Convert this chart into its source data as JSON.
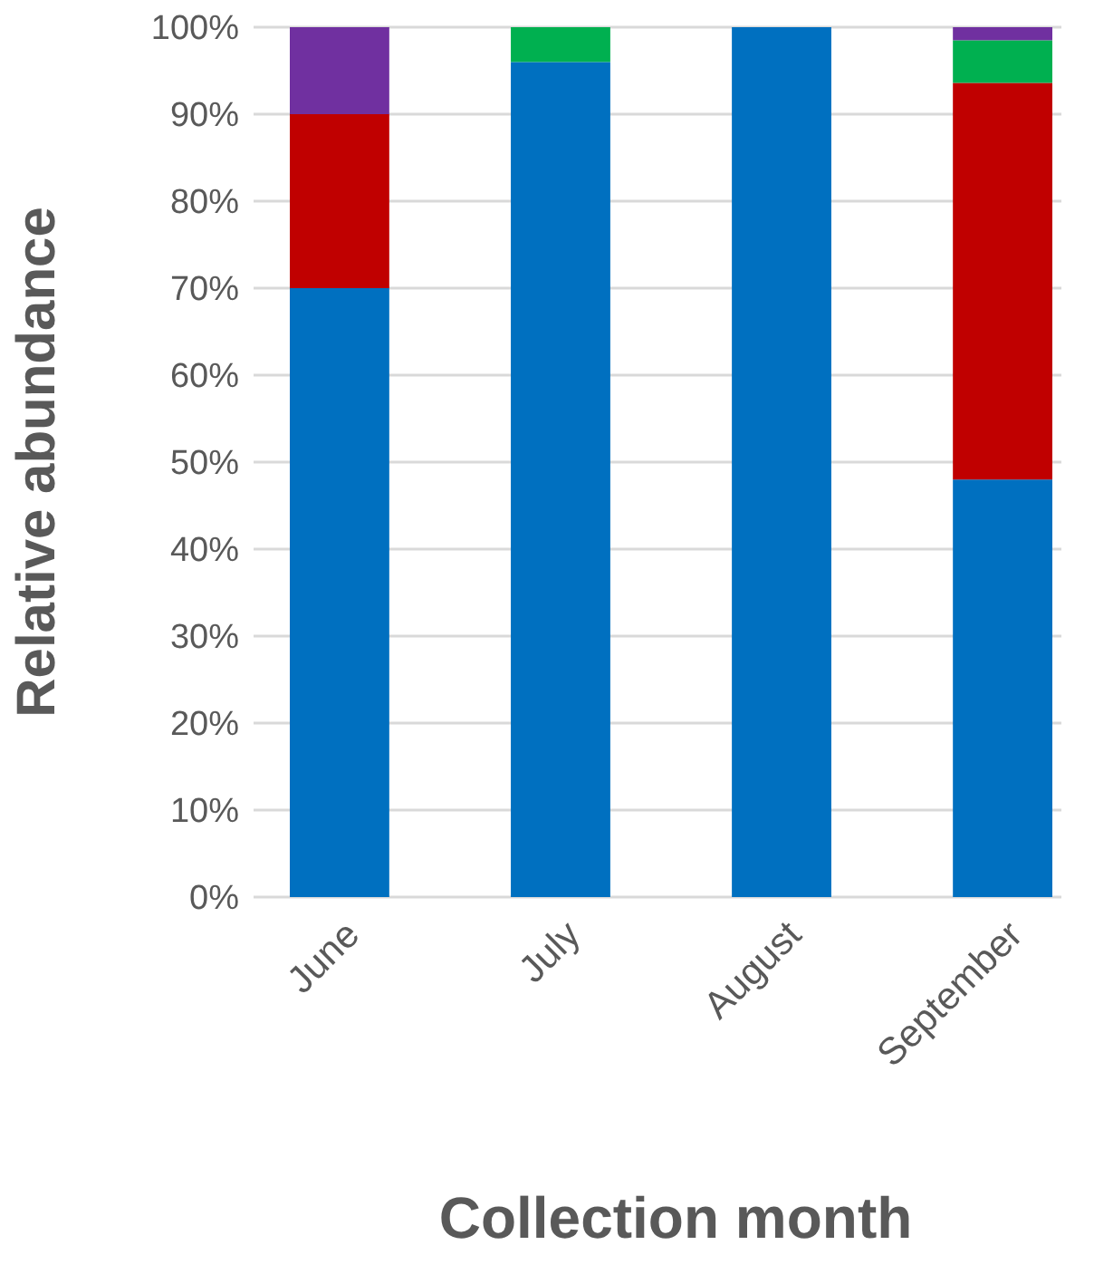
{
  "chart_data": {
    "type": "bar",
    "stacked": true,
    "xlabel": "Collection month",
    "ylabel": "Relative abundance",
    "categories": [
      "June",
      "July",
      "August",
      "September"
    ],
    "series": [
      {
        "color": "#0070c0",
        "values": [
          70,
          96,
          100,
          48
        ]
      },
      {
        "color": "#c00000",
        "values": [
          20,
          0,
          0,
          45.6
        ]
      },
      {
        "color": "#00b050",
        "values": [
          0,
          4,
          0,
          4.9
        ]
      },
      {
        "color": "#7030a0",
        "values": [
          10,
          0,
          0,
          1.5
        ]
      }
    ],
    "ylim": [
      0,
      100
    ],
    "yticks": [
      {
        "value": 0,
        "label": "0%"
      },
      {
        "value": 10,
        "label": "10%"
      },
      {
        "value": 20,
        "label": "20%"
      },
      {
        "value": 30,
        "label": "30%"
      },
      {
        "value": 40,
        "label": "40%"
      },
      {
        "value": 50,
        "label": "50%"
      },
      {
        "value": 60,
        "label": "60%"
      },
      {
        "value": 70,
        "label": "70%"
      },
      {
        "value": 80,
        "label": "80%"
      },
      {
        "value": 90,
        "label": "90%"
      },
      {
        "value": 100,
        "label": "100%"
      }
    ],
    "grid": "y"
  }
}
